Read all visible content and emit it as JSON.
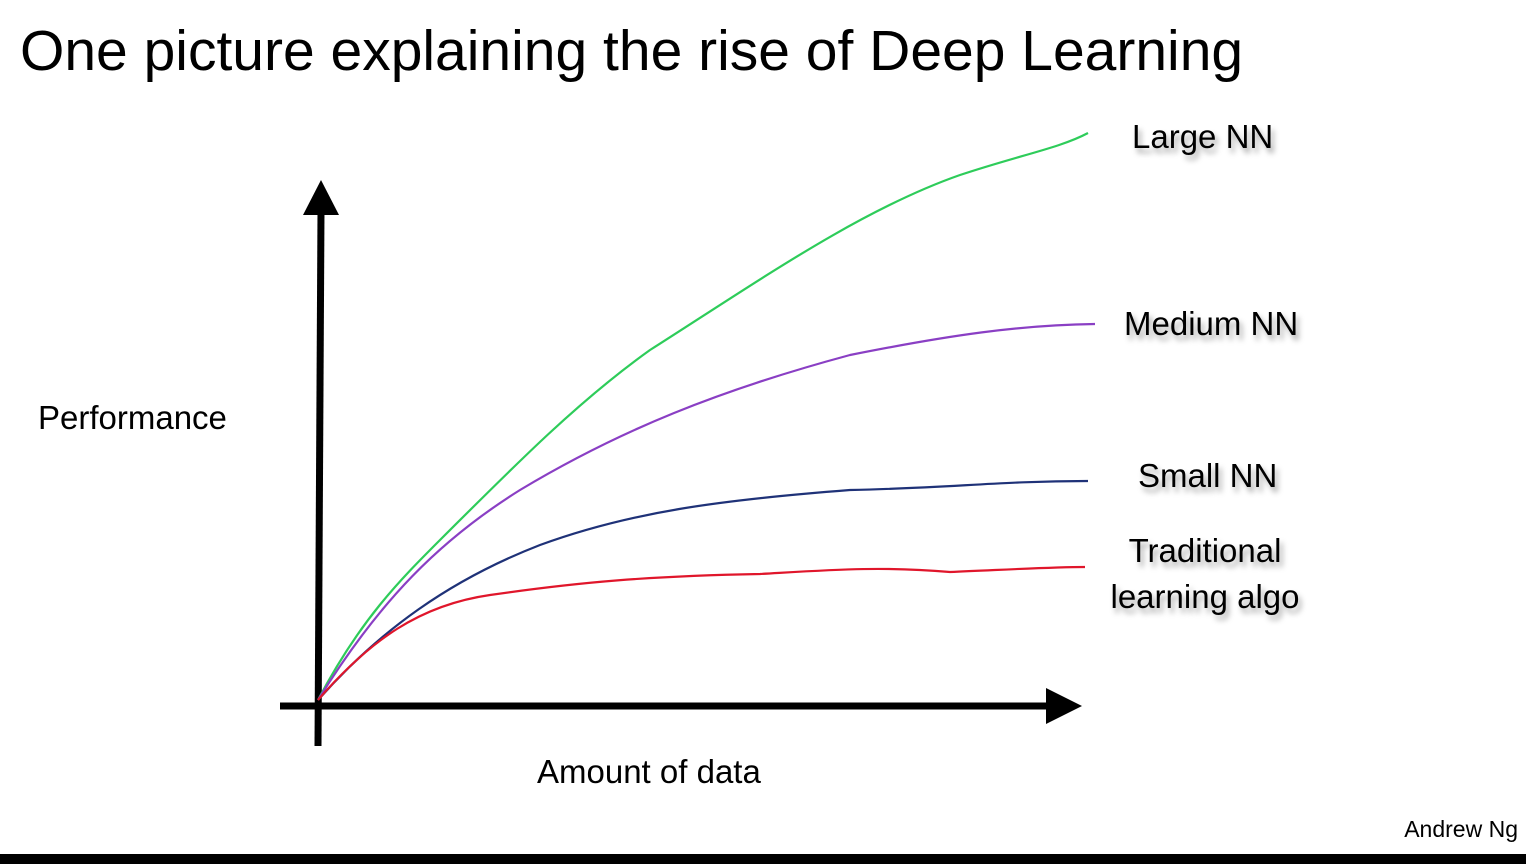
{
  "title": "One picture explaining the rise of Deep Learning",
  "y_axis_label": "Performance",
  "x_axis_label": "Amount of data",
  "curves": [
    {
      "label_lines": [
        "Large NN"
      ]
    },
    {
      "label_lines": [
        "Medium NN"
      ]
    },
    {
      "label_lines": [
        "Small NN"
      ]
    },
    {
      "label_lines": [
        "Traditional",
        "learning algo"
      ]
    }
  ],
  "footer": "Andrew Ng"
}
